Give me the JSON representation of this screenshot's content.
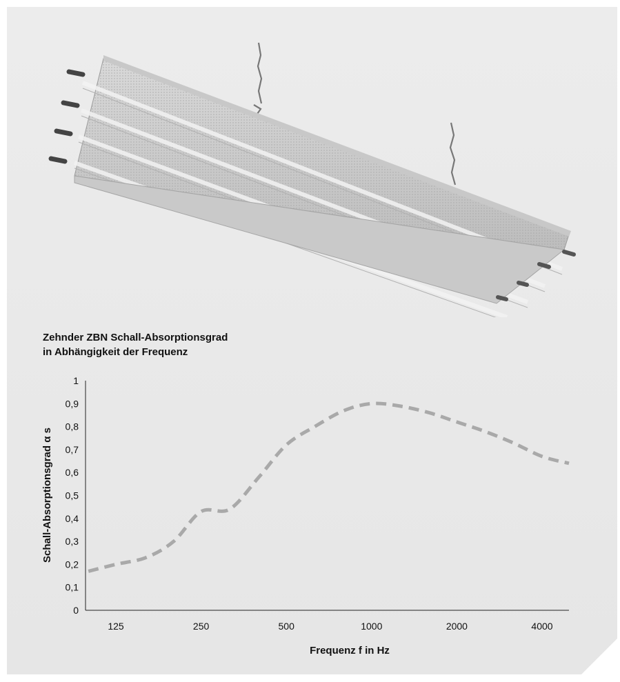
{
  "title_lines": [
    "Zehnder ZBN Schall-Absorptionsgrad",
    "in Abhängigkeit der Frequenz"
  ],
  "colors": {
    "background": "#e9e9e9",
    "curve": "#a9a9a9",
    "axis": "#222222"
  },
  "chart_data": {
    "type": "line",
    "title": "Zehnder ZBN Schall-Absorptionsgrad in Abhängigkeit der Frequenz",
    "xlabel": "Frequenz f in Hz",
    "ylabel": "Schall-Absorptionsgrad α s",
    "x_tick_labels": [
      "125",
      "250",
      "500",
      "1000",
      "2000",
      "4000"
    ],
    "y_tick_labels": [
      "0",
      "0,1",
      "0,2",
      "0,3",
      "0,4",
      "0,5",
      "0,6",
      "0,7",
      "0,8",
      "0,9",
      "1"
    ],
    "ylim": [
      0,
      1
    ],
    "x_scale": "log",
    "grid": false,
    "legend": "none",
    "line_style": "dashed",
    "series": [
      {
        "x": [
          100,
          125,
          160,
          200,
          250,
          315,
          400,
          500,
          630,
          800,
          1000,
          1250,
          1600,
          2000,
          2500,
          3150,
          4000,
          5000
        ],
        "values": [
          0.17,
          0.2,
          0.23,
          0.3,
          0.43,
          0.44,
          0.58,
          0.72,
          0.8,
          0.87,
          0.9,
          0.89,
          0.86,
          0.82,
          0.78,
          0.73,
          0.67,
          0.64
        ]
      }
    ]
  }
}
